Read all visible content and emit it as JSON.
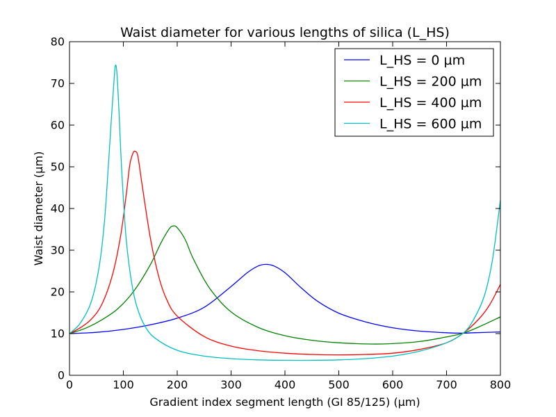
{
  "chart_data": {
    "type": "line",
    "title": "Waist diameter for various lengths of silica (L_HS)",
    "xlabel": "Gradient index segment length (GI 85/125) (µm)",
    "ylabel": "Waist diameter (µm)",
    "xlim": [
      0,
      800
    ],
    "ylim": [
      0,
      80
    ],
    "xticks": [
      0,
      100,
      200,
      300,
      400,
      500,
      600,
      700,
      800
    ],
    "yticks": [
      0,
      10,
      20,
      30,
      40,
      50,
      60,
      70,
      80
    ],
    "grid": false,
    "legend_position": "top-right",
    "series": [
      {
        "name": "L_HS = 0 µm",
        "color": "#0000ff",
        "x": [
          0,
          50,
          100,
          150,
          200,
          250,
          300,
          330,
          350,
          365,
          380,
          400,
          430,
          460,
          500,
          550,
          600,
          650,
          700,
          731,
          750,
          800
        ],
        "y": [
          10.0,
          10.3,
          11.0,
          12.1,
          13.7,
          16.3,
          21.3,
          24.6,
          26.2,
          26.6,
          26.2,
          24.6,
          21.0,
          17.8,
          14.9,
          12.8,
          11.4,
          10.6,
          10.2,
          10.1,
          10.2,
          10.4
        ]
      },
      {
        "name": "L_HS = 200 µm",
        "color": "#008000",
        "x": [
          0,
          30,
          60,
          90,
          120,
          150,
          170,
          185,
          192,
          200,
          215,
          230,
          260,
          300,
          350,
          400,
          450,
          500,
          560,
          600,
          650,
          700,
          731,
          760,
          800
        ],
        "y": [
          10.0,
          11.3,
          13.3,
          16.0,
          20.3,
          26.5,
          31.8,
          35.1,
          35.8,
          35.4,
          32.5,
          27.9,
          20.9,
          15.2,
          11.5,
          9.5,
          8.4,
          7.8,
          7.5,
          7.6,
          8.1,
          9.2,
          10.1,
          11.6,
          14.0
        ]
      },
      {
        "name": "L_HS = 400 µm",
        "color": "#ff0000",
        "x": [
          0,
          20,
          40,
          60,
          80,
          95,
          105,
          112,
          118,
          122,
          127,
          135,
          150,
          165,
          180,
          200,
          250,
          300,
          350,
          400,
          450,
          500,
          550,
          600,
          650,
          700,
          731,
          760,
          780,
          800
        ],
        "y": [
          10.0,
          11.4,
          13.4,
          17.0,
          24.2,
          33.5,
          43.0,
          50.5,
          53.3,
          53.7,
          52.5,
          45.5,
          33.0,
          24.0,
          18.3,
          14.2,
          9.3,
          7.0,
          5.9,
          5.3,
          5.0,
          4.9,
          5.0,
          5.3,
          6.2,
          7.8,
          10.1,
          13.5,
          16.9,
          21.8
        ]
      },
      {
        "name": "L_HS = 600 µm",
        "color": "#00bfbf",
        "x": [
          0,
          20,
          40,
          55,
          65,
          72,
          78,
          82,
          85,
          88,
          92,
          97,
          105,
          115,
          125,
          140,
          160,
          200,
          250,
          300,
          350,
          400,
          450,
          500,
          550,
          600,
          650,
          700,
          731,
          750,
          770,
          785,
          800
        ],
        "y": [
          10.0,
          12.5,
          17.5,
          26.0,
          37.0,
          50.0,
          62.0,
          69.5,
          74.2,
          72.5,
          63.0,
          49.0,
          33.0,
          22.5,
          16.5,
          11.8,
          8.8,
          6.0,
          4.6,
          4.0,
          3.7,
          3.6,
          3.6,
          3.7,
          4.0,
          4.6,
          5.8,
          7.8,
          10.1,
          13.3,
          19.0,
          27.5,
          42.0
        ]
      }
    ]
  }
}
